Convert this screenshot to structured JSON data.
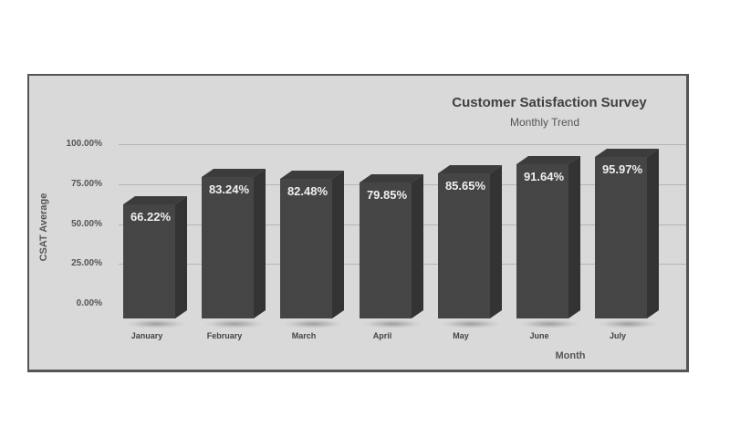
{
  "chart_data": {
    "type": "bar",
    "title": "Customer Satisfaction Survey",
    "subtitle": "Monthly Trend",
    "xlabel": "Month",
    "ylabel": "CSAT Average",
    "categories": [
      "January",
      "February",
      "March",
      "April",
      "May",
      "June",
      "July"
    ],
    "values": [
      66.22,
      83.24,
      82.48,
      79.85,
      85.65,
      91.64,
      95.97
    ],
    "value_labels": [
      "66.22%",
      "83.24%",
      "82.48%",
      "79.85%",
      "85.65%",
      "91.64%",
      "95.97%"
    ],
    "yticks": [
      "100.00%",
      "75.00%",
      "50.00%",
      "25.00%",
      "0.00%"
    ],
    "ylim": [
      0,
      100
    ],
    "grid": true,
    "legend": "none",
    "style": "3d-column",
    "colors": {
      "bar_front": "#454545",
      "bar_side": "#333333",
      "background": "#d9d9d9",
      "border": "#555555"
    }
  }
}
